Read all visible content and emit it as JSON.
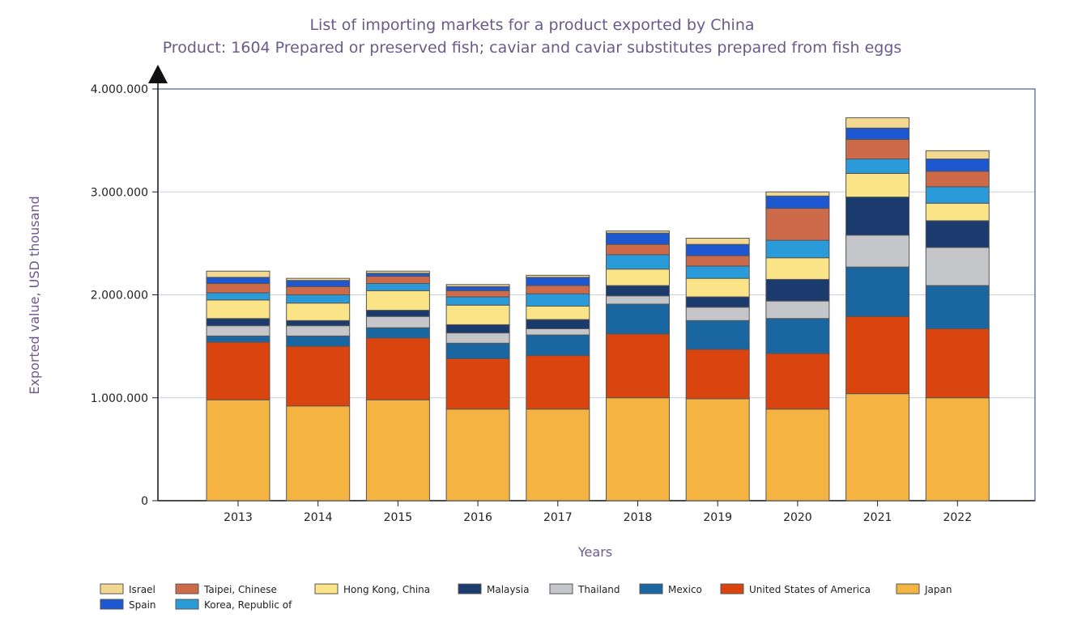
{
  "chart_data": {
    "type": "bar",
    "stacked": true,
    "title": "List of importing markets for a product exported by China",
    "subtitle": "Product: 1604 Prepared or preserved fish; caviar and caviar substitutes prepared from fish eggs",
    "xlabel": "Years",
    "ylabel": "Exported value, USD thousand",
    "ylim": [
      0,
      4000000
    ],
    "yticks": [
      0,
      1000000,
      2000000,
      3000000,
      4000000
    ],
    "ytick_labels": [
      "0",
      "1.000.000",
      "2.000.000",
      "3.000.000",
      "4.000.000"
    ],
    "categories": [
      "2013",
      "2014",
      "2015",
      "2016",
      "2017",
      "2018",
      "2019",
      "2020",
      "2021",
      "2022"
    ],
    "legend_position": "bottom",
    "series": [
      {
        "name": "Japan",
        "color": "#f5b441",
        "values": [
          980000,
          920000,
          980000,
          890000,
          890000,
          1000000,
          990000,
          890000,
          1040000,
          1000000
        ]
      },
      {
        "name": "United States of America",
        "color": "#d9440f",
        "values": [
          560000,
          580000,
          600000,
          490000,
          520000,
          620000,
          480000,
          540000,
          750000,
          670000
        ]
      },
      {
        "name": "Mexico",
        "color": "#1a66a0",
        "values": [
          60000,
          100000,
          100000,
          150000,
          200000,
          290000,
          280000,
          340000,
          480000,
          420000
        ]
      },
      {
        "name": "Thailand",
        "color": "#c4c6ca",
        "values": [
          100000,
          100000,
          110000,
          100000,
          60000,
          80000,
          130000,
          170000,
          310000,
          370000
        ]
      },
      {
        "name": "Malaysia",
        "color": "#1b3a6e",
        "values": [
          70000,
          50000,
          60000,
          80000,
          90000,
          100000,
          100000,
          210000,
          370000,
          260000
        ]
      },
      {
        "name": "Hong Kong, China",
        "color": "#fbe488",
        "values": [
          180000,
          170000,
          190000,
          190000,
          130000,
          160000,
          180000,
          210000,
          230000,
          170000
        ]
      },
      {
        "name": "Korea, Republic of",
        "color": "#2a9bd8",
        "values": [
          70000,
          80000,
          70000,
          80000,
          120000,
          140000,
          120000,
          170000,
          140000,
          160000
        ]
      },
      {
        "name": "Taipei, Chinese",
        "color": "#cd6a4a",
        "values": [
          90000,
          80000,
          70000,
          60000,
          80000,
          100000,
          100000,
          310000,
          190000,
          150000
        ]
      },
      {
        "name": "Spain",
        "color": "#1e58d0",
        "values": [
          60000,
          60000,
          30000,
          40000,
          80000,
          110000,
          110000,
          120000,
          110000,
          120000
        ]
      },
      {
        "name": "Israel",
        "color": "#f3d892",
        "values": [
          60000,
          20000,
          20000,
          20000,
          20000,
          20000,
          60000,
          40000,
          100000,
          80000
        ]
      }
    ],
    "legend_order": [
      "Israel",
      "Taipei, Chinese",
      "Hong Kong, China",
      "Malaysia",
      "Thailand",
      "Mexico",
      "United States of America",
      "Japan",
      "Spain",
      "Korea, Republic of"
    ]
  }
}
